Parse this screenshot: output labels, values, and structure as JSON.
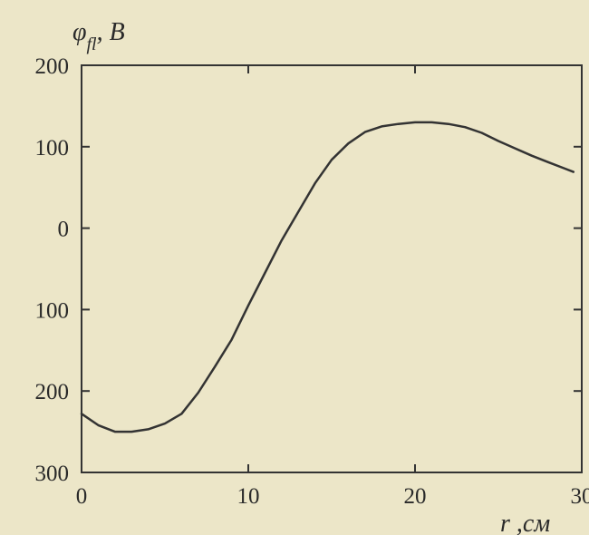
{
  "chart_data": {
    "type": "line",
    "ylabel": "φ",
    "ylabel_sub": "fl",
    "ylabel_unit": ", B",
    "xlabel": "r",
    "xlabel_unit": " ,см",
    "xlim": [
      0,
      30
    ],
    "ylim": [
      -300,
      200
    ],
    "x_ticks": [
      0,
      10,
      20,
      30
    ],
    "x_tick_labels": [
      "0",
      "10",
      "20",
      "30"
    ],
    "y_ticks": [
      200,
      100,
      0,
      -100,
      -200,
      -300
    ],
    "y_tick_labels": [
      "200",
      "100",
      "0",
      "100",
      "200",
      "300"
    ],
    "grid": false,
    "series": [
      {
        "x": [
          0,
          1,
          2,
          3,
          4,
          5,
          6,
          7,
          8,
          9,
          10,
          11,
          12,
          13,
          14,
          15,
          16,
          17,
          18,
          19,
          20,
          21,
          22,
          23,
          24,
          25,
          26,
          27,
          28,
          29,
          29.5
        ],
        "y": [
          -228,
          -242,
          -250,
          -250,
          -247,
          -240,
          -228,
          -202,
          -170,
          -137,
          -95,
          -55,
          -15,
          20,
          55,
          84,
          104,
          118,
          125,
          128,
          130,
          130,
          128,
          124,
          117,
          107,
          98,
          89,
          81,
          73,
          69
        ]
      }
    ]
  }
}
